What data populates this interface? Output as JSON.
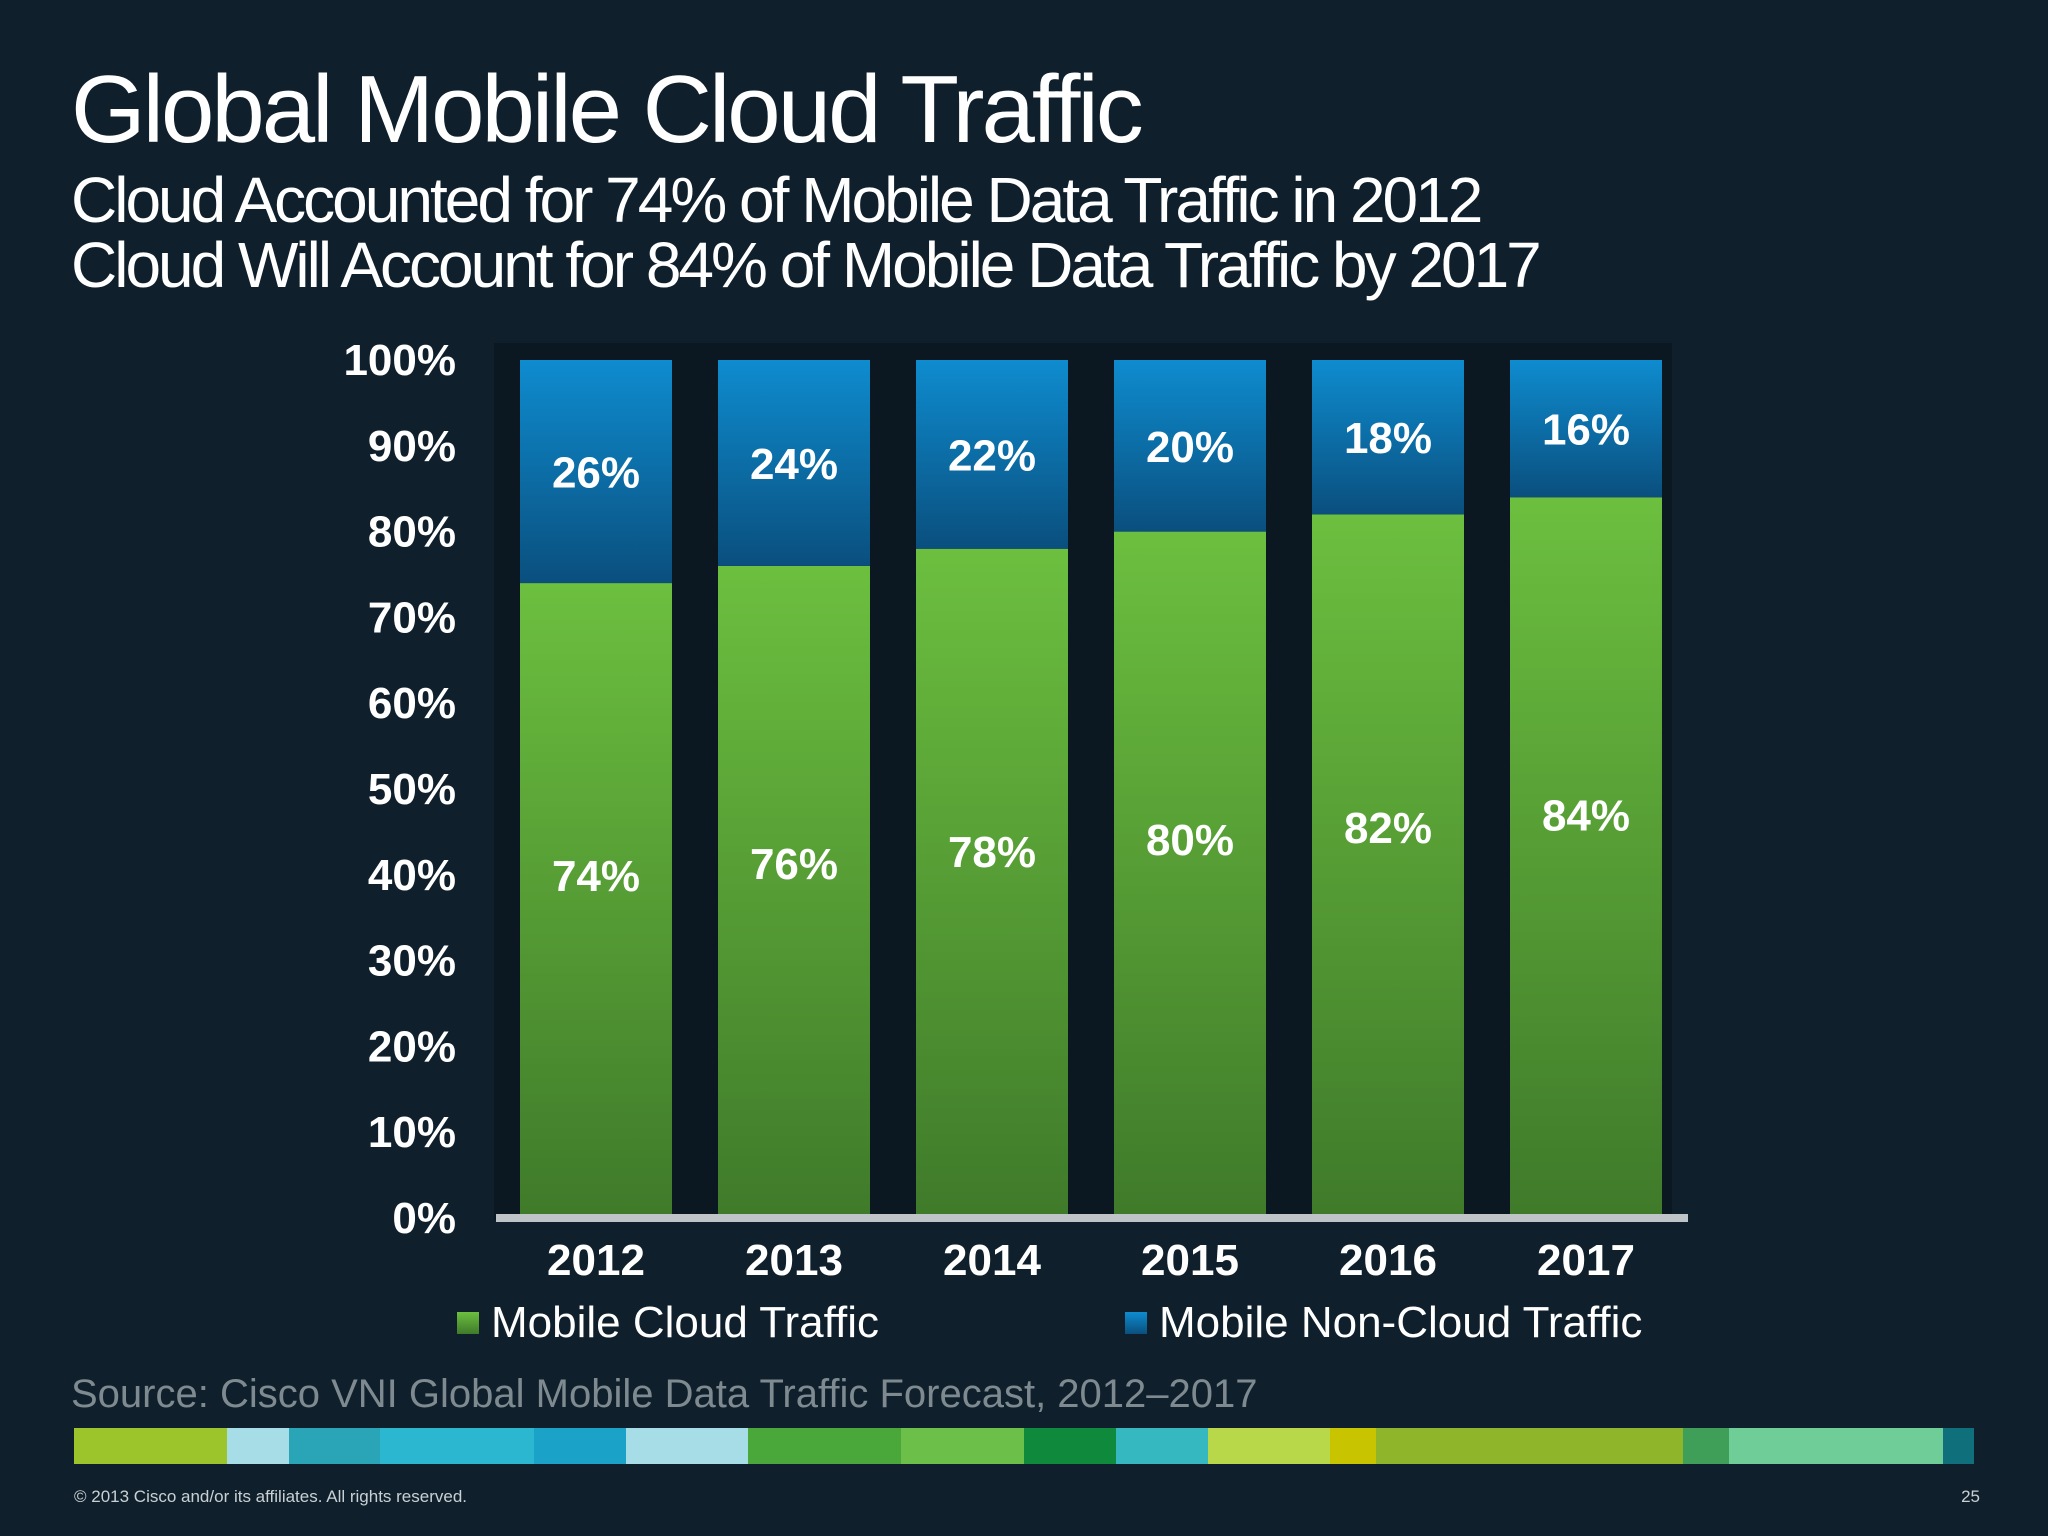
{
  "slide": {
    "title": "Global Mobile Cloud Traffic",
    "subtitle_line1": "Cloud Accounted for 74% of Mobile Data Traffic in 2012",
    "subtitle_line2": "Cloud Will Account for 84% of Mobile Data Traffic by 2017",
    "source": "Source: Cisco VNI Global Mobile Data Traffic Forecast, 2012–2017",
    "copyright": "© 2013 Cisco and/or its affiliates. All rights reserved.",
    "page_number": "25"
  },
  "chart_data": {
    "type": "bar",
    "stacked": true,
    "categories": [
      "2012",
      "2013",
      "2014",
      "2015",
      "2016",
      "2017"
    ],
    "series": [
      {
        "name": "Mobile Cloud Traffic",
        "values": [
          74,
          76,
          78,
          80,
          82,
          84
        ],
        "labels": [
          "74%",
          "76%",
          "78%",
          "80%",
          "82%",
          "84%"
        ],
        "color": "#5fae3a"
      },
      {
        "name": "Mobile Non-Cloud Traffic",
        "values": [
          26,
          24,
          22,
          20,
          18,
          16
        ],
        "labels": [
          "26%",
          "24%",
          "22%",
          "20%",
          "18%",
          "16%"
        ],
        "color": "#0a78b8"
      }
    ],
    "ylim": [
      0,
      100
    ],
    "yticks": [
      "0%",
      "10%",
      "20%",
      "30%",
      "40%",
      "50%",
      "60%",
      "70%",
      "80%",
      "90%",
      "100%"
    ],
    "legend_position": "bottom",
    "grid": false
  },
  "colors": {
    "background": "#0f202c",
    "plot_background": "#0b1822",
    "axis_line": "#bfc4c7",
    "color_strip": [
      "#9bc52a",
      "#a6dde6",
      "#2aa5b8",
      "#2bb7cf",
      "#1aa2c9",
      "#a6dde6",
      "#4aa83a",
      "#6cc04a",
      "#0f8a3c",
      "#36b8c0",
      "#b8d84a",
      "#c8c400",
      "#8fb52a",
      "#3f9e58",
      "#6fcd98",
      "#0f6f7a"
    ]
  }
}
